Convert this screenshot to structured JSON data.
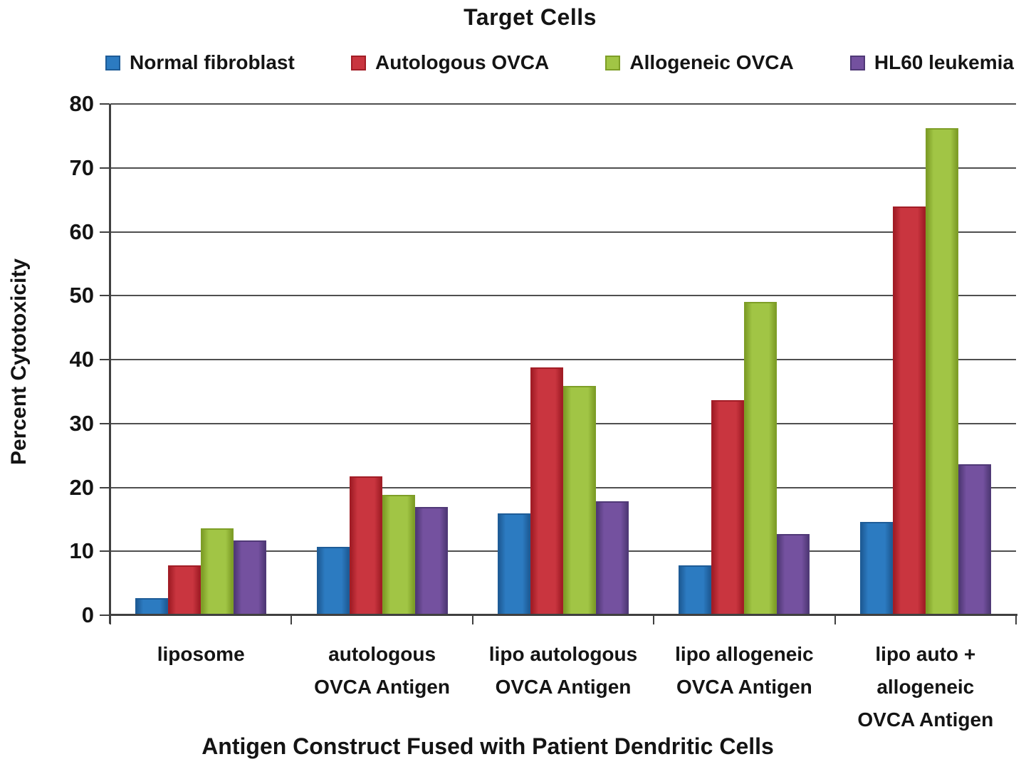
{
  "chart_data": {
    "type": "bar",
    "title": "Target Cells",
    "xlabel": "Antigen Construct Fused with Patient Dendritic Cells",
    "ylabel": "Percent Cytotoxicity",
    "ylim": [
      0,
      80
    ],
    "yticks": [
      0,
      10,
      20,
      30,
      40,
      50,
      60,
      70,
      80
    ],
    "grid": true,
    "legend_position": "top",
    "categories": [
      "liposome",
      "autologous\nOVCA Antigen",
      "lipo autologous\nOVCA Antigen",
      "lipo allogeneic\nOVCA Antigen",
      "lipo auto +\nallogeneic\nOVCA Antigen"
    ],
    "series": [
      {
        "name": "Normal fibroblast",
        "color": "#2C7BC1",
        "border": "#1E5C97",
        "values": [
          2.7,
          10.7,
          15.9,
          7.8,
          14.6
        ]
      },
      {
        "name": "Autologous OVCA",
        "color": "#C9353F",
        "border": "#A21D26",
        "values": [
          7.8,
          21.7,
          38.8,
          33.7,
          63.9
        ]
      },
      {
        "name": "Allogeneic OVCA",
        "color": "#A1C545",
        "border": "#7E9E27",
        "values": [
          13.6,
          18.8,
          35.9,
          49.0,
          76.2
        ]
      },
      {
        "name": "HL60 leukemia",
        "color": "#74519F",
        "border": "#503977",
        "values": [
          11.7,
          16.9,
          17.8,
          12.7,
          23.6
        ]
      }
    ]
  },
  "colors": {
    "gridline": "#4F4F4F",
    "axis": "#404040",
    "text": "#141414"
  }
}
